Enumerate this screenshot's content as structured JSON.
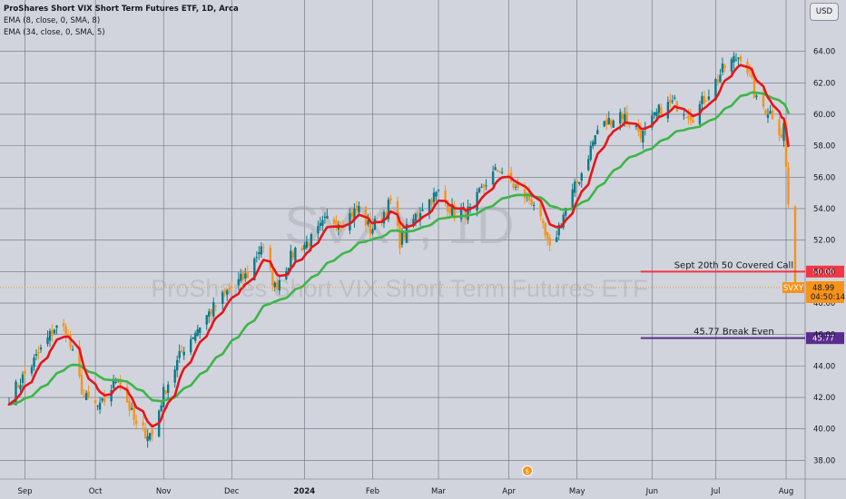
{
  "chart_data": {
    "type": "candlestick",
    "title": "ProShares Short VIX Short Term Futures ETF, 1D, Arca",
    "symbol": "SVXY",
    "watermark_symbol": "SVXY, 1D",
    "watermark_name": "ProShares Short VIX Short Term Futures ETF",
    "currency": "USD",
    "indicators": [
      {
        "name": "EMA (8, close, 0, SMA, 8)",
        "color": "#e6151b",
        "period": 8
      },
      {
        "name": "EMA (34, close, 0, SMA, 5)",
        "color": "#3db54a",
        "period": 34
      }
    ],
    "ylim": [
      37.0,
      66.0
    ],
    "yticks": [
      38.0,
      40.0,
      42.0,
      44.0,
      46.0,
      48.0,
      50.0,
      52.0,
      54.0,
      56.0,
      58.0,
      60.0,
      62.0,
      64.0
    ],
    "xticks": [
      {
        "label": "Sep",
        "date": "2023-09-01",
        "bold": false
      },
      {
        "label": "Oct",
        "date": "2023-10-02",
        "bold": false
      },
      {
        "label": "Nov",
        "date": "2023-11-01",
        "bold": false
      },
      {
        "label": "Dec",
        "date": "2023-12-01",
        "bold": false
      },
      {
        "label": "2024",
        "date": "2024-01-02",
        "bold": true
      },
      {
        "label": "Feb",
        "date": "2024-02-01",
        "bold": false
      },
      {
        "label": "Mar",
        "date": "2024-03-01",
        "bold": false
      },
      {
        "label": "Apr",
        "date": "2024-04-01",
        "bold": false
      },
      {
        "label": "May",
        "date": "2024-05-01",
        "bold": false
      },
      {
        "label": "Jun",
        "date": "2024-06-03",
        "bold": false
      },
      {
        "label": "Jul",
        "date": "2024-07-01",
        "bold": false
      },
      {
        "label": "Aug",
        "date": "2024-08-01",
        "bold": false
      }
    ],
    "close_path": [
      [
        "2023-08-25",
        42.0
      ],
      [
        "2023-09-05",
        44.3
      ],
      [
        "2023-09-14",
        46.4
      ],
      [
        "2023-09-19",
        46.3
      ],
      [
        "2023-09-27",
        42.0
      ],
      [
        "2023-10-04",
        41.3
      ],
      [
        "2023-10-12",
        43.4
      ],
      [
        "2023-10-20",
        40.1
      ],
      [
        "2023-10-27",
        39.6
      ],
      [
        "2023-11-01",
        42.3
      ],
      [
        "2023-11-10",
        45.2
      ],
      [
        "2023-11-20",
        47.2
      ],
      [
        "2023-12-01",
        49.0
      ],
      [
        "2023-12-08",
        49.8
      ],
      [
        "2023-12-14",
        51.7
      ],
      [
        "2023-12-20",
        49.0
      ],
      [
        "2023-12-29",
        51.4
      ],
      [
        "2024-01-05",
        52.0
      ],
      [
        "2024-01-12",
        53.3
      ],
      [
        "2024-01-18",
        53.2
      ],
      [
        "2024-01-26",
        54.0
      ],
      [
        "2024-01-31",
        52.6
      ],
      [
        "2024-02-09",
        54.4
      ],
      [
        "2024-02-13",
        51.9
      ],
      [
        "2024-02-23",
        54.2
      ],
      [
        "2024-03-01",
        55.0
      ],
      [
        "2024-03-08",
        53.7
      ],
      [
        "2024-03-15",
        53.8
      ],
      [
        "2024-03-22",
        55.7
      ],
      [
        "2024-03-28",
        56.6
      ],
      [
        "2024-04-05",
        55.1
      ],
      [
        "2024-04-12",
        54.4
      ],
      [
        "2024-04-19",
        51.3
      ],
      [
        "2024-04-26",
        54.0
      ],
      [
        "2024-05-03",
        56.3
      ],
      [
        "2024-05-10",
        59.0
      ],
      [
        "2024-05-20",
        60.1
      ],
      [
        "2024-05-30",
        58.7
      ],
      [
        "2024-06-07",
        60.4
      ],
      [
        "2024-06-13",
        60.7
      ],
      [
        "2024-06-21",
        59.9
      ],
      [
        "2024-06-28",
        61.4
      ],
      [
        "2024-07-05",
        63.0
      ],
      [
        "2024-07-12",
        63.8
      ],
      [
        "2024-07-16",
        62.5
      ],
      [
        "2024-07-19",
        60.8
      ],
      [
        "2024-07-26",
        60.0
      ],
      [
        "2024-07-30",
        58.7
      ],
      [
        "2024-07-31",
        59.3
      ],
      [
        "2024-08-01",
        56.6
      ],
      [
        "2024-08-02",
        54.3
      ],
      [
        "2024-08-05",
        48.99
      ]
    ],
    "horizontal_lines": [
      {
        "label": "Sept 20th 50 Covered Call",
        "value": 50.0,
        "value_label": "50.00",
        "color": "#f23645",
        "from": "2024-05-29"
      },
      {
        "label": "45.77 Break Even",
        "value": 45.77,
        "value_label": "45.77",
        "color": "#5b2c8f",
        "from": "2024-05-29"
      }
    ],
    "last_price": {
      "value": 48.99,
      "value_label": "48.99",
      "countdown": "04:50:14",
      "color": "#f7931a"
    },
    "grid": true,
    "legend_position": "top-left"
  }
}
